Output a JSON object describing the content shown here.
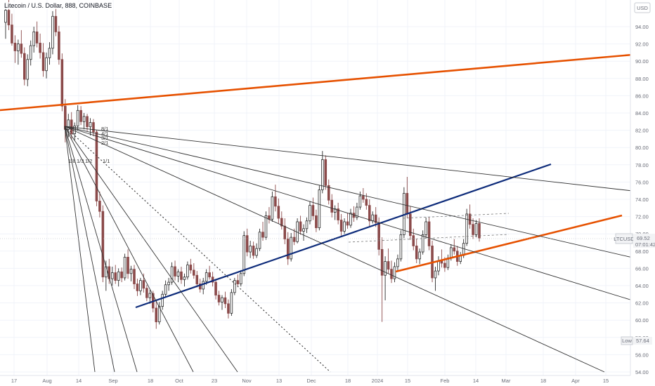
{
  "chart_data": {
    "type": "candlestick",
    "title": "Litecoin / U.S. Dollar, 888, COINBASE",
    "currency": "USD",
    "last_price": {
      "symbol": "LTCUSD",
      "value": "69.52",
      "countdown": "07:01:42"
    },
    "low_marker": {
      "label": "Low",
      "value": "57.64"
    },
    "y_ticks": [
      "94.00",
      "92.00",
      "90.00",
      "88.00",
      "86.00",
      "84.00",
      "82.00",
      "80.00",
      "78.00",
      "76.00",
      "74.00",
      "72.00",
      "70.00",
      "68.00",
      "66.00",
      "64.00",
      "62.00",
      "60.00",
      "58.00",
      "56.00",
      "54.00"
    ],
    "x_ticks": [
      "17",
      "Aug",
      "14",
      "Sep",
      "18",
      "Oct",
      "23",
      "Nov",
      "13",
      "Dec",
      "18",
      "2024",
      "15",
      "Feb",
      "14",
      "Mar",
      "18",
      "Apr",
      "15"
    ],
    "fan_labels": [
      "8/1",
      "4/1",
      "3/1",
      "2/1",
      "1/8",
      "1/3",
      "1/2",
      "1/1"
    ],
    "candles": [
      [
        94.5,
        96.8,
        92.6,
        95.9
      ],
      [
        95.9,
        97.4,
        93.6,
        94.2
      ],
      [
        94.2,
        95.5,
        91.8,
        92.1
      ],
      [
        92.1,
        93.0,
        89.8,
        91.2
      ],
      [
        91.2,
        92.5,
        89.6,
        92.0
      ],
      [
        92.0,
        93.6,
        90.4,
        90.9
      ],
      [
        90.9,
        91.6,
        87.2,
        87.9
      ],
      [
        87.9,
        90.8,
        87.1,
        90.2
      ],
      [
        90.2,
        92.4,
        89.5,
        91.8
      ],
      [
        91.8,
        94.0,
        91.0,
        93.4
      ],
      [
        93.4,
        94.6,
        91.6,
        92.1
      ],
      [
        92.1,
        93.2,
        90.3,
        91.0
      ],
      [
        91.0,
        92.1,
        88.2,
        88.9
      ],
      [
        88.9,
        91.0,
        88.0,
        90.4
      ],
      [
        90.4,
        92.2,
        89.6,
        91.5
      ],
      [
        91.5,
        95.8,
        90.8,
        95.2
      ],
      [
        95.2,
        96.6,
        92.9,
        93.4
      ],
      [
        93.4,
        94.1,
        89.6,
        90.2
      ],
      [
        90.2,
        90.9,
        84.2,
        84.8
      ],
      [
        84.8,
        85.6,
        80.6,
        82.1
      ],
      [
        82.1,
        83.9,
        81.2,
        83.2
      ],
      [
        83.2,
        84.1,
        80.9,
        81.6
      ],
      [
        81.6,
        82.9,
        80.8,
        82.5
      ],
      [
        82.5,
        84.9,
        82.0,
        84.3
      ],
      [
        84.3,
        84.8,
        82.6,
        83.0
      ],
      [
        83.0,
        84.0,
        82.1,
        83.6
      ],
      [
        83.6,
        83.9,
        81.9,
        82.4
      ],
      [
        82.4,
        83.4,
        81.4,
        82.9
      ],
      [
        82.9,
        83.3,
        81.3,
        81.8
      ],
      [
        81.8,
        82.0,
        73.2,
        73.8
      ],
      [
        73.8,
        74.9,
        71.9,
        72.6
      ],
      [
        72.6,
        73.3,
        64.4,
        65.0
      ],
      [
        65.0,
        66.9,
        63.4,
        66.2
      ],
      [
        66.2,
        67.1,
        64.2,
        64.8
      ],
      [
        64.8,
        66.2,
        64.0,
        65.5
      ],
      [
        65.5,
        66.4,
        64.2,
        64.6
      ],
      [
        64.6,
        66.0,
        63.9,
        65.6
      ],
      [
        65.6,
        66.1,
        64.4,
        64.9
      ],
      [
        64.9,
        67.7,
        64.6,
        67.3
      ],
      [
        67.3,
        68.2,
        64.8,
        65.4
      ],
      [
        65.4,
        66.3,
        64.5,
        65.9
      ],
      [
        65.9,
        66.4,
        63.6,
        64.2
      ],
      [
        64.2,
        64.8,
        62.8,
        63.4
      ],
      [
        63.4,
        64.9,
        62.9,
        64.6
      ],
      [
        64.6,
        65.4,
        63.2,
        63.7
      ],
      [
        63.7,
        64.1,
        62.2,
        62.6
      ],
      [
        62.6,
        63.5,
        61.9,
        63.1
      ],
      [
        63.1,
        63.4,
        60.9,
        61.4
      ],
      [
        61.4,
        62.4,
        59.0,
        59.8
      ],
      [
        59.8,
        62.1,
        59.5,
        61.6
      ],
      [
        61.6,
        63.4,
        61.2,
        63.0
      ],
      [
        63.0,
        64.6,
        62.6,
        64.1
      ],
      [
        64.1,
        64.9,
        63.4,
        64.4
      ],
      [
        64.4,
        66.7,
        64.1,
        66.2
      ],
      [
        66.2,
        66.9,
        64.6,
        65.1
      ],
      [
        65.1,
        65.9,
        64.4,
        65.6
      ],
      [
        65.6,
        66.2,
        64.2,
        64.7
      ],
      [
        64.7,
        65.4,
        63.9,
        65.0
      ],
      [
        65.0,
        66.8,
        64.7,
        66.4
      ],
      [
        66.4,
        67.1,
        65.4,
        65.8
      ],
      [
        65.8,
        66.6,
        64.8,
        65.2
      ],
      [
        65.2,
        65.7,
        63.8,
        64.2
      ],
      [
        64.2,
        64.8,
        63.2,
        63.6
      ],
      [
        63.6,
        64.9,
        63.0,
        64.5
      ],
      [
        64.5,
        65.9,
        64.1,
        65.5
      ],
      [
        65.5,
        66.3,
        64.7,
        65.0
      ],
      [
        65.0,
        65.6,
        63.9,
        64.4
      ],
      [
        64.4,
        64.8,
        62.4,
        62.9
      ],
      [
        62.9,
        63.4,
        61.7,
        62.1
      ],
      [
        62.1,
        62.9,
        61.2,
        62.6
      ],
      [
        62.6,
        63.3,
        61.4,
        61.9
      ],
      [
        61.9,
        62.4,
        60.2,
        60.8
      ],
      [
        60.8,
        63.6,
        60.5,
        63.2
      ],
      [
        63.2,
        64.9,
        62.9,
        64.6
      ],
      [
        64.6,
        65.3,
        63.9,
        64.2
      ],
      [
        64.2,
        65.8,
        63.9,
        65.4
      ],
      [
        65.4,
        70.3,
        65.1,
        69.8
      ],
      [
        69.8,
        70.6,
        67.4,
        67.9
      ],
      [
        67.9,
        69.2,
        67.2,
        68.6
      ],
      [
        68.6,
        69.1,
        67.1,
        67.5
      ],
      [
        67.5,
        68.9,
        67.2,
        68.3
      ],
      [
        68.3,
        70.6,
        68.0,
        70.2
      ],
      [
        70.2,
        71.4,
        69.2,
        69.6
      ],
      [
        69.6,
        72.6,
        69.3,
        72.1
      ],
      [
        72.1,
        73.1,
        71.2,
        71.7
      ],
      [
        71.7,
        74.9,
        71.4,
        74.3
      ],
      [
        74.3,
        75.7,
        72.6,
        73.2
      ],
      [
        73.2,
        74.1,
        71.2,
        71.8
      ],
      [
        71.8,
        72.6,
        70.5,
        70.9
      ],
      [
        70.9,
        71.8,
        68.8,
        69.4
      ],
      [
        69.4,
        70.2,
        66.4,
        67.1
      ],
      [
        67.1,
        70.1,
        66.8,
        69.6
      ],
      [
        69.6,
        70.6,
        68.7,
        69.1
      ],
      [
        69.1,
        71.8,
        68.9,
        71.4
      ],
      [
        71.4,
        72.1,
        69.9,
        70.3
      ],
      [
        70.3,
        71.1,
        69.2,
        70.6
      ],
      [
        70.6,
        71.9,
        70.1,
        71.5
      ],
      [
        71.5,
        73.8,
        71.1,
        73.3
      ],
      [
        73.3,
        74.2,
        71.6,
        72.1
      ],
      [
        72.1,
        72.8,
        70.2,
        70.7
      ],
      [
        70.7,
        75.6,
        70.4,
        75.1
      ],
      [
        75.1,
        79.6,
        74.7,
        78.6
      ],
      [
        78.6,
        79.1,
        75.1,
        75.6
      ],
      [
        75.6,
        76.3,
        73.4,
        73.9
      ],
      [
        73.9,
        74.6,
        71.9,
        72.5
      ],
      [
        72.5,
        73.3,
        71.6,
        72.9
      ],
      [
        72.9,
        73.6,
        71.1,
        71.6
      ],
      [
        71.6,
        72.3,
        69.8,
        70.3
      ],
      [
        70.3,
        71.8,
        70.0,
        71.4
      ],
      [
        71.4,
        72.4,
        70.6,
        71.0
      ],
      [
        71.0,
        72.9,
        70.7,
        72.4
      ],
      [
        72.4,
        73.2,
        71.4,
        71.9
      ],
      [
        71.9,
        73.6,
        71.6,
        73.1
      ],
      [
        73.1,
        74.9,
        72.8,
        74.4
      ],
      [
        74.4,
        75.3,
        73.6,
        74.0
      ],
      [
        74.0,
        74.7,
        72.8,
        73.3
      ],
      [
        73.3,
        74.0,
        70.9,
        71.5
      ],
      [
        71.5,
        72.6,
        71.2,
        72.2
      ],
      [
        72.2,
        73.1,
        70.8,
        71.3
      ],
      [
        71.3,
        71.9,
        67.5,
        68.2
      ],
      [
        68.2,
        69.6,
        59.8,
        65.2
      ],
      [
        65.2,
        67.4,
        62.3,
        66.8
      ],
      [
        66.8,
        68.3,
        65.4,
        65.9
      ],
      [
        65.9,
        66.9,
        64.3,
        64.8
      ],
      [
        64.8,
        66.7,
        64.4,
        66.2
      ],
      [
        66.2,
        67.6,
        65.7,
        67.1
      ],
      [
        67.1,
        70.4,
        66.8,
        69.9
      ],
      [
        69.9,
        75.4,
        69.5,
        74.7
      ],
      [
        74.7,
        76.6,
        71.8,
        72.3
      ],
      [
        72.3,
        73.2,
        69.3,
        69.8
      ],
      [
        69.8,
        70.6,
        68.1,
        68.6
      ],
      [
        68.6,
        69.4,
        66.6,
        67.1
      ],
      [
        67.1,
        68.3,
        66.5,
        67.9
      ],
      [
        67.9,
        70.4,
        67.6,
        69.9
      ],
      [
        69.9,
        71.9,
        69.5,
        71.4
      ],
      [
        71.4,
        71.9,
        68.1,
        68.6
      ],
      [
        68.6,
        69.2,
        64.4,
        64.9
      ],
      [
        64.9,
        66.2,
        63.4,
        65.7
      ],
      [
        65.7,
        67.4,
        65.2,
        66.9
      ],
      [
        66.9,
        68.2,
        66.1,
        66.6
      ],
      [
        66.6,
        67.3,
        65.6,
        66.1
      ],
      [
        66.1,
        67.6,
        65.8,
        67.2
      ],
      [
        67.2,
        68.8,
        66.9,
        68.4
      ],
      [
        68.4,
        69.4,
        67.6,
        68.0
      ],
      [
        68.0,
        68.6,
        66.3,
        66.8
      ],
      [
        66.8,
        67.9,
        66.5,
        67.5
      ],
      [
        67.5,
        69.4,
        67.2,
        68.9
      ],
      [
        68.9,
        72.9,
        68.6,
        72.3
      ],
      [
        72.3,
        73.4,
        70.6,
        71.1
      ],
      [
        71.1,
        71.8,
        69.4,
        69.9
      ],
      [
        69.9,
        71.6,
        69.6,
        71.2
      ],
      [
        71.2,
        71.8,
        69.1,
        69.52
      ]
    ]
  }
}
